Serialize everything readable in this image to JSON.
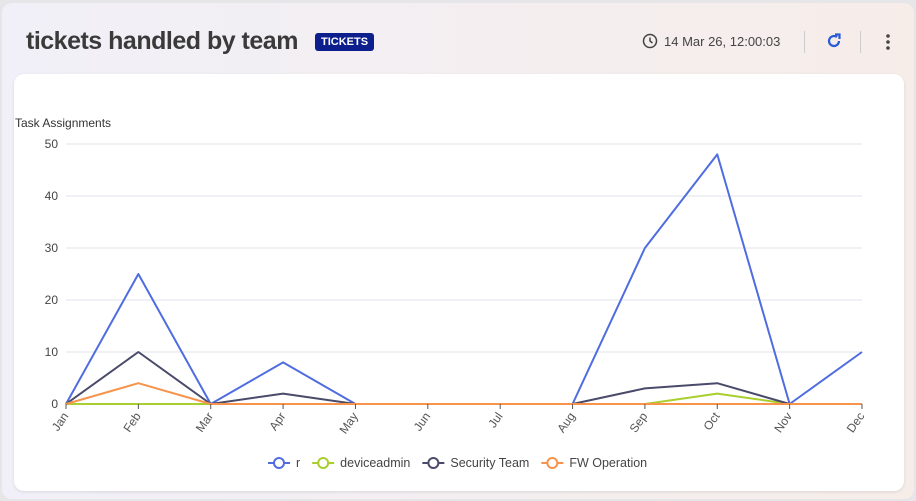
{
  "header": {
    "title": "tickets handled by team",
    "badge": "TICKETS",
    "timestamp": "14 Mar 26, 12:00:03"
  },
  "icons": {
    "clock": "clock-icon",
    "refresh": "refresh-icon",
    "more": "more-vertical-icon"
  },
  "chart_data": {
    "type": "line",
    "ylabel": "Task Assignments",
    "ylim": [
      0,
      50
    ],
    "yticks": [
      0,
      10,
      20,
      30,
      40,
      50
    ],
    "categories": [
      "Jan",
      "Feb",
      "Mar",
      "Apr",
      "May",
      "Jun",
      "Jul",
      "Aug",
      "Sep",
      "Oct",
      "Nov",
      "Dec"
    ],
    "legend_position": "bottom",
    "series": [
      {
        "name": "r",
        "color": "#4f6de0",
        "values": [
          0,
          25,
          0,
          8,
          0,
          0,
          0,
          0,
          30,
          48,
          0,
          10
        ]
      },
      {
        "name": "deviceadmin",
        "color": "#a8cf2e",
        "values": [
          0,
          0,
          0,
          0,
          0,
          0,
          0,
          0,
          0,
          2,
          0,
          0
        ]
      },
      {
        "name": "Security Team",
        "color": "#4a4a6a",
        "values": [
          0,
          10,
          0,
          2,
          0,
          0,
          0,
          0,
          3,
          4,
          0,
          0
        ]
      },
      {
        "name": "FW Operation",
        "color": "#f7934a",
        "values": [
          0,
          4,
          0,
          0,
          0,
          0,
          0,
          0,
          0,
          0,
          0,
          0
        ]
      }
    ]
  }
}
